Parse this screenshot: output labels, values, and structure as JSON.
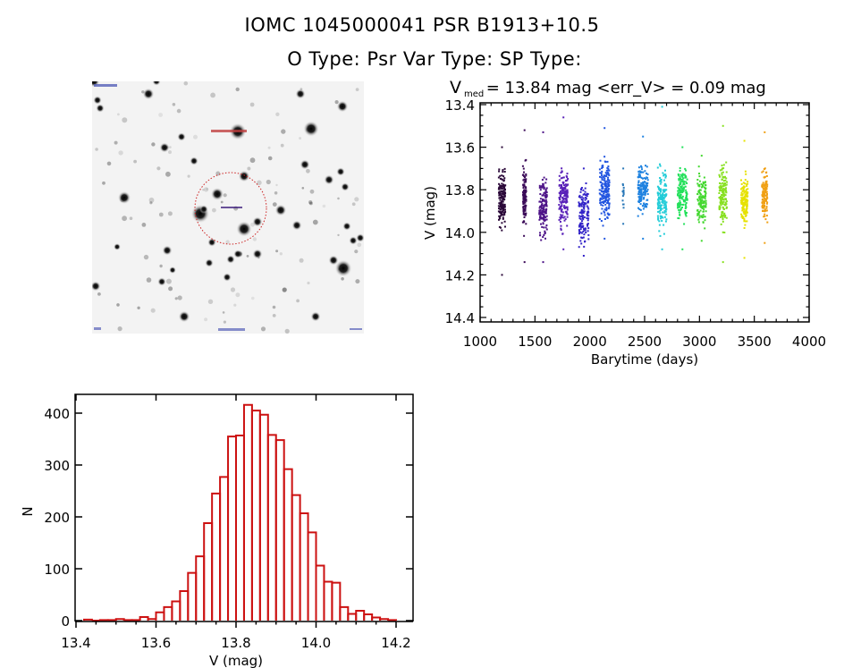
{
  "header": {
    "title_line1": "IOMC 1045000041    PSR B1913+10.5",
    "title_line2": "O Type: Psr   Var Type:    SP Type:"
  },
  "finder_chart": {
    "target_label": "PSR B1913+10.5",
    "circle_color": "#cc2222",
    "marker_color": "#2222aa"
  },
  "chart_data": [
    {
      "type": "scatter",
      "title": "V_med = 13.84 mag <err_V> = 0.09 mag",
      "title_parts": {
        "v": "V",
        "sub": "med",
        "rest": " = 13.84 mag <err_V> = 0.09 mag"
      },
      "xlabel": "Barytime (days)",
      "ylabel": "V (mag)",
      "xlim": [
        1000,
        4000
      ],
      "ylim": [
        14.4,
        13.4
      ],
      "y_inverted": true,
      "xticks": [
        "1000",
        "1500",
        "2000",
        "2500",
        "3000",
        "3500",
        "4000"
      ],
      "xtick_values": [
        1000,
        1500,
        2000,
        2500,
        3000,
        3500,
        4000
      ],
      "yticks": [
        "13.4",
        "13.6",
        "13.8",
        "14.0",
        "14.2",
        "14.4"
      ],
      "ytick_values": [
        13.4,
        13.6,
        13.8,
        14.0,
        14.2,
        14.4
      ],
      "color_encoding": "time (purple to orange)",
      "groups": [
        {
          "t_start": 1170,
          "t_end": 1230,
          "v_min": 13.65,
          "v_max": 14.04,
          "outlier_low": 14.2,
          "outlier_high": 13.6,
          "color": "#2a0838",
          "n": 160
        },
        {
          "t_start": 1390,
          "t_end": 1420,
          "v_min": 13.62,
          "v_max": 14.05,
          "outlier_low": 14.14,
          "outlier_high": 13.52,
          "color": "#3b0a58",
          "n": 120
        },
        {
          "t_start": 1540,
          "t_end": 1610,
          "v_min": 13.68,
          "v_max": 14.08,
          "outlier_low": 14.14,
          "outlier_high": 13.53,
          "color": "#4e1488",
          "n": 150
        },
        {
          "t_start": 1720,
          "t_end": 1800,
          "v_min": 13.63,
          "v_max": 14.05,
          "outlier_low": 14.08,
          "outlier_high": 13.46,
          "color": "#5a22b8",
          "n": 160
        },
        {
          "t_start": 1900,
          "t_end": 1990,
          "v_min": 13.72,
          "v_max": 14.11,
          "outlier_low": 14.11,
          "outlier_high": 13.7,
          "color": "#3324c8",
          "n": 130
        },
        {
          "t_start": 2090,
          "t_end": 2180,
          "v_min": 13.59,
          "v_max": 14.03,
          "outlier_low": 14.03,
          "outlier_high": 13.51,
          "color": "#2255e0",
          "n": 170
        },
        {
          "t_start": 2300,
          "t_end": 2310,
          "v_min": 13.7,
          "v_max": 13.96,
          "outlier_low": 13.96,
          "outlier_high": 13.7,
          "color": "#2a78b8",
          "n": 14
        },
        {
          "t_start": 2440,
          "t_end": 2530,
          "v_min": 13.63,
          "v_max": 13.97,
          "outlier_low": 14.03,
          "outlier_high": 13.55,
          "color": "#1e82e0",
          "n": 150
        },
        {
          "t_start": 2620,
          "t_end": 2700,
          "v_min": 13.65,
          "v_max": 14.03,
          "outlier_low": 14.08,
          "outlier_high": 13.41,
          "color": "#22ccd8",
          "n": 150
        },
        {
          "t_start": 2800,
          "t_end": 2890,
          "v_min": 13.66,
          "v_max": 14.0,
          "outlier_low": 14.08,
          "outlier_high": 13.6,
          "color": "#22e05a",
          "n": 150
        },
        {
          "t_start": 2980,
          "t_end": 3060,
          "v_min": 13.66,
          "v_max": 14.02,
          "outlier_low": 14.04,
          "outlier_high": 13.64,
          "color": "#44d830",
          "n": 130
        },
        {
          "t_start": 3180,
          "t_end": 3250,
          "v_min": 13.63,
          "v_max": 14.02,
          "outlier_low": 14.14,
          "outlier_high": 13.5,
          "color": "#88e022",
          "n": 150
        },
        {
          "t_start": 3380,
          "t_end": 3440,
          "v_min": 13.68,
          "v_max": 14.03,
          "outlier_low": 14.12,
          "outlier_high": 13.57,
          "color": "#e6e200",
          "n": 140
        },
        {
          "t_start": 3570,
          "t_end": 3620,
          "v_min": 13.65,
          "v_max": 14.0,
          "outlier_low": 14.05,
          "outlier_high": 13.53,
          "color": "#f0a014",
          "n": 130
        }
      ]
    },
    {
      "type": "bar",
      "subtype": "histogram",
      "title": "",
      "xlabel": "V (mag)",
      "ylabel": "N",
      "xlim": [
        13.4,
        14.2
      ],
      "ylim": [
        0,
        440
      ],
      "xticks": [
        "13.4",
        "13.6",
        "13.8",
        "14.0",
        "14.2"
      ],
      "xtick_values": [
        13.4,
        13.6,
        13.8,
        14.0,
        14.2
      ],
      "yticks": [
        "0",
        "100",
        "200",
        "300",
        "400"
      ],
      "ytick_values": [
        0,
        100,
        200,
        300,
        400
      ],
      "bar_color": "#cc1111",
      "bin_width": 0.02,
      "bin_starts": [
        13.42,
        13.44,
        13.46,
        13.48,
        13.5,
        13.52,
        13.54,
        13.56,
        13.58,
        13.6,
        13.62,
        13.64,
        13.66,
        13.68,
        13.7,
        13.72,
        13.74,
        13.76,
        13.78,
        13.8,
        13.82,
        13.84,
        13.86,
        13.88,
        13.9,
        13.92,
        13.94,
        13.96,
        13.98,
        14.0,
        14.02,
        14.04,
        14.06,
        14.08,
        14.1,
        14.12,
        14.14,
        14.16,
        14.18
      ],
      "values": [
        2,
        0,
        1,
        1,
        3,
        1,
        1,
        7,
        3,
        16,
        26,
        37,
        57,
        92,
        124,
        188,
        245,
        277,
        355,
        357,
        416,
        405,
        397,
        358,
        348,
        292,
        242,
        207,
        170,
        106,
        75,
        73,
        26,
        13,
        19,
        12,
        6,
        3,
        1
      ]
    }
  ]
}
